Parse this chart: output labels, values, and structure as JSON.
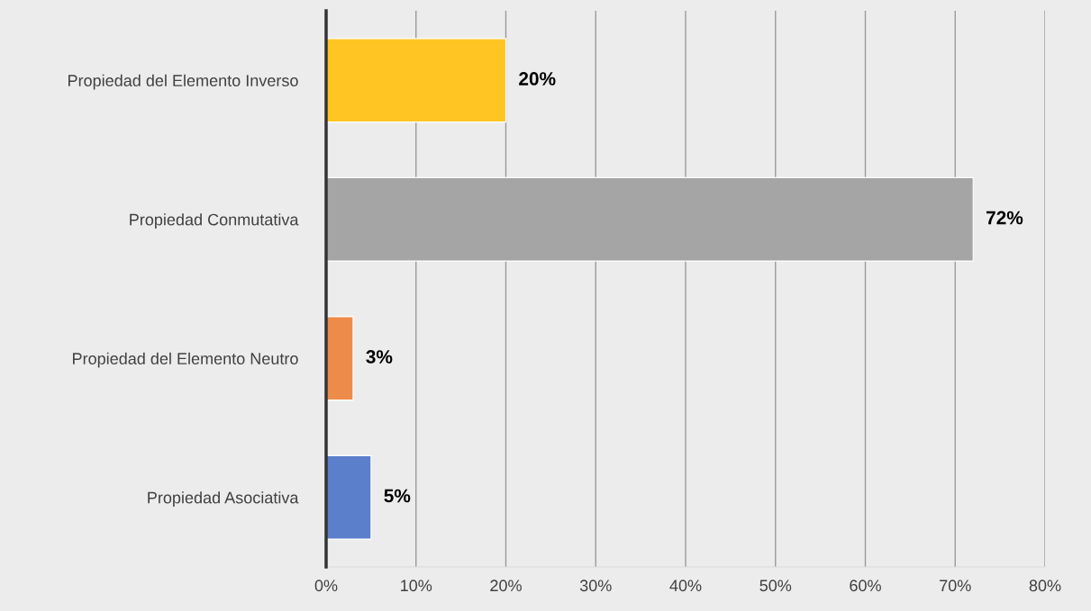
{
  "chart_data": {
    "type": "bar",
    "orientation": "horizontal",
    "categories": [
      "Propiedad del Elemento Inverso",
      "Propiedad Conmutativa",
      "Propiedad del Elemento Neutro",
      "Propiedad Asociativa"
    ],
    "values": [
      20,
      72,
      3,
      5
    ],
    "colors": [
      "#ffc522",
      "#a5a5a5",
      "#ed8b4a",
      "#5b7fcb"
    ],
    "value_labels": [
      "20%",
      "72%",
      "3%",
      "5%"
    ],
    "xlim": [
      0,
      80
    ],
    "xticks": [
      {
        "value": 0,
        "label": "0%"
      },
      {
        "value": 10,
        "label": "10%"
      },
      {
        "value": 20,
        "label": "20%"
      },
      {
        "value": 30,
        "label": "30%"
      },
      {
        "value": 40,
        "label": "40%"
      },
      {
        "value": 50,
        "label": "50%"
      },
      {
        "value": 60,
        "label": "60%"
      },
      {
        "value": 70,
        "label": "70%"
      },
      {
        "value": 80,
        "label": "80%"
      }
    ],
    "grid": "x"
  }
}
